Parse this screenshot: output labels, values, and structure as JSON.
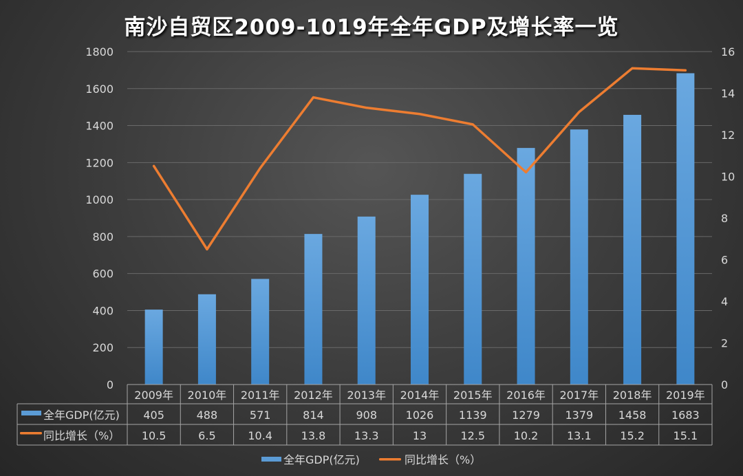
{
  "chart_data": {
    "type": "bar+line",
    "title": "南沙自贸区2009-1019年全年GDP及增长率一览",
    "categories": [
      "2009年",
      "2010年",
      "2011年",
      "2012年",
      "2013年",
      "2014年",
      "2015年",
      "2016年",
      "2017年",
      "2018年",
      "2019年"
    ],
    "series": [
      {
        "name": "全年GDP(亿元)",
        "type": "bar",
        "axis": "left",
        "color": "#5b9bd5",
        "values": [
          405,
          488,
          571,
          814,
          908,
          1026,
          1139,
          1279,
          1379,
          1458,
          1683
        ]
      },
      {
        "name": "同比增长（%）",
        "type": "line",
        "axis": "right",
        "color": "#ed7d31",
        "values": [
          10.5,
          6.5,
          10.4,
          13.8,
          13.3,
          13,
          12.5,
          10.2,
          13.1,
          15.2,
          15.1
        ]
      }
    ],
    "ylim_left": [
      0,
      1800
    ],
    "yticks_left": [
      0,
      200,
      400,
      600,
      800,
      1000,
      1200,
      1400,
      1600,
      1800
    ],
    "ylim_right": [
      0,
      16
    ],
    "yticks_right": [
      0,
      2,
      4,
      6,
      8,
      10,
      12,
      14,
      16
    ],
    "grid": true,
    "data_table": true,
    "legend_position": "bottom"
  }
}
